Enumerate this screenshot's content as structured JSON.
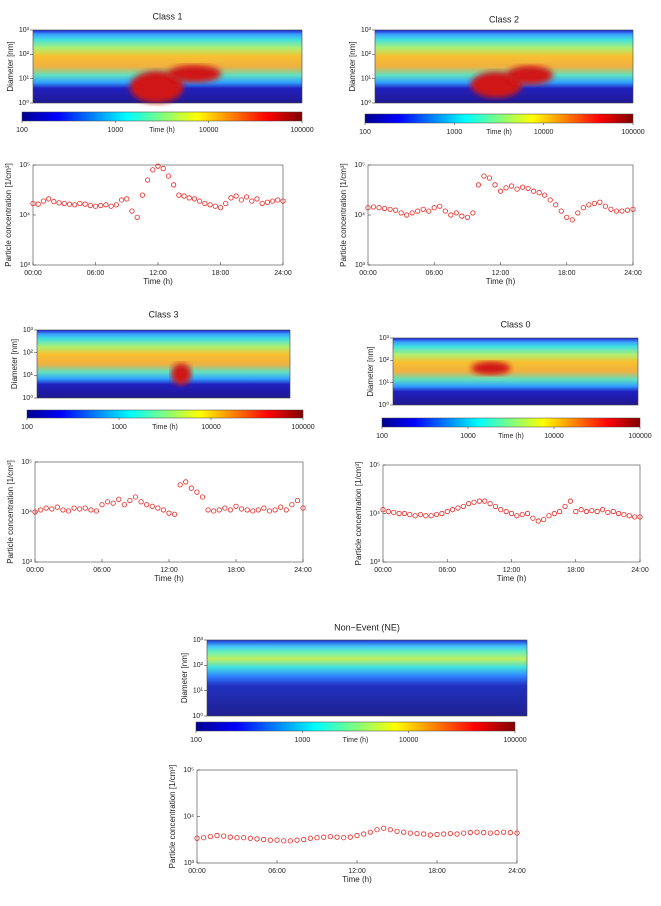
{
  "chart_data": [
    {
      "type": "heatmap",
      "title": "Class 1",
      "ylabel": "Diameter [nm]",
      "ylim": [
        1,
        1000
      ],
      "log_y": true,
      "yticks": [
        {
          "value": 1,
          "label": "10⁰"
        },
        {
          "value": 10,
          "label": "10¹"
        },
        {
          "value": 100,
          "label": "10²"
        },
        {
          "value": 1000,
          "label": "10³"
        }
      ],
      "colorbar": {
        "label": "Time (h)",
        "xlim": [
          100,
          100000
        ],
        "xticks": [
          100,
          1000,
          10000,
          100000
        ],
        "log": true
      }
    },
    {
      "type": "scatter",
      "ylabel": "Particle concentration [1/cm³]",
      "xlabel": "Time (h)",
      "color": "#e8231f",
      "log_y": true,
      "xlim": [
        0,
        24
      ],
      "xticks": [
        {
          "value": 0,
          "label": "00:00"
        },
        {
          "value": 6,
          "label": "06:00"
        },
        {
          "value": 12,
          "label": "12:00"
        },
        {
          "value": 18,
          "label": "18:00"
        },
        {
          "value": 24,
          "label": "24:00"
        }
      ],
      "ylim": [
        1000,
        100000
      ],
      "yticks": [
        {
          "value": 1000,
          "label": "10³"
        },
        {
          "value": 10000,
          "label": "10⁴"
        },
        {
          "value": 100000,
          "label": "10⁵"
        }
      ],
      "x": [
        0,
        0.5,
        1,
        1.5,
        2,
        2.5,
        3,
        3.5,
        4,
        4.5,
        5,
        5.5,
        6,
        6.5,
        7,
        7.5,
        8,
        8.5,
        9,
        9.5,
        10,
        10.5,
        11,
        11.5,
        12,
        12.5,
        13,
        13.5,
        14,
        14.5,
        15,
        15.5,
        16,
        16.5,
        17,
        17.5,
        18,
        18.5,
        19,
        19.5,
        20,
        20.5,
        21,
        21.5,
        22,
        22.5,
        23,
        23.5,
        24
      ],
      "values": [
        17000,
        16500,
        19000,
        21000,
        18500,
        17500,
        17000,
        16500,
        16000,
        17000,
        16500,
        15500,
        15000,
        15500,
        16000,
        15000,
        16000,
        20000,
        21000,
        12000,
        9000,
        25000,
        50000,
        80000,
        95000,
        85000,
        60000,
        40000,
        25000,
        24000,
        22000,
        21000,
        19000,
        17000,
        16000,
        15000,
        14000,
        17000,
        22000,
        24000,
        20000,
        23000,
        19000,
        21000,
        17000,
        18000,
        19000,
        20000,
        19000
      ]
    },
    {
      "type": "heatmap",
      "title": "Class 2",
      "ylabel": "Diameter [nm]",
      "ylim": [
        1,
        1000
      ],
      "log_y": true,
      "yticks": [
        {
          "value": 1,
          "label": "10⁰"
        },
        {
          "value": 10,
          "label": "10¹"
        },
        {
          "value": 100,
          "label": "10²"
        },
        {
          "value": 1000,
          "label": "10³"
        }
      ],
      "colorbar": {
        "label": "Time (h)",
        "xlim": [
          100,
          100000
        ],
        "xticks": [
          100,
          1000,
          10000,
          100000
        ],
        "log": true
      }
    },
    {
      "type": "scatter",
      "ylabel": "Particle concentration [1/cm³]",
      "xlabel": "Time (h)",
      "color": "#e8231f",
      "log_y": true,
      "xlim": [
        0,
        24
      ],
      "xticks": [
        {
          "value": 0,
          "label": "00:00"
        },
        {
          "value": 6,
          "label": "06:00"
        },
        {
          "value": 12,
          "label": "12:00"
        },
        {
          "value": 18,
          "label": "18:00"
        },
        {
          "value": 24,
          "label": "24:00"
        }
      ],
      "ylim": [
        1000,
        100000
      ],
      "yticks": [
        {
          "value": 1000,
          "label": "10³"
        },
        {
          "value": 10000,
          "label": "10⁴"
        },
        {
          "value": 100000,
          "label": "10⁵"
        }
      ],
      "x": [
        0,
        0.5,
        1,
        1.5,
        2,
        2.5,
        3,
        3.5,
        4,
        4.5,
        5,
        5.5,
        6,
        6.5,
        7,
        7.5,
        8,
        8.5,
        9,
        9.5,
        10,
        10.5,
        11,
        11.5,
        12,
        12.5,
        13,
        13.5,
        14,
        14.5,
        15,
        15.5,
        16,
        16.5,
        17,
        17.5,
        18,
        18.5,
        19,
        19.5,
        20,
        20.5,
        21,
        21.5,
        22,
        22.5,
        23,
        23.5,
        24
      ],
      "values": [
        14000,
        14500,
        14000,
        13500,
        13000,
        12500,
        11000,
        10000,
        11000,
        12000,
        13000,
        12000,
        14000,
        15000,
        12000,
        10000,
        11000,
        9500,
        9000,
        11000,
        40000,
        60000,
        55000,
        40000,
        30000,
        35000,
        38000,
        33000,
        36000,
        34000,
        30000,
        28000,
        25000,
        20000,
        16000,
        12000,
        9000,
        8000,
        11000,
        14000,
        16000,
        17000,
        18000,
        15000,
        13000,
        12000,
        12000,
        12500,
        13000
      ]
    },
    {
      "type": "heatmap",
      "title": "Class 3",
      "ylabel": "Diameter [nm]",
      "ylim": [
        1,
        1000
      ],
      "log_y": true,
      "yticks": [
        {
          "value": 1,
          "label": "10⁰"
        },
        {
          "value": 10,
          "label": "10¹"
        },
        {
          "value": 100,
          "label": "10²"
        },
        {
          "value": 1000,
          "label": "10³"
        }
      ],
      "colorbar": {
        "label": "Time (h)",
        "xlim": [
          100,
          100000
        ],
        "xticks": [
          100,
          1000,
          10000,
          100000
        ],
        "log": true
      }
    },
    {
      "type": "scatter",
      "ylabel": "Particle concentration [1/cm³]",
      "xlabel": "Time (h)",
      "color": "#e8231f",
      "log_y": true,
      "xlim": [
        0,
        24
      ],
      "xticks": [
        {
          "value": 0,
          "label": "00:00"
        },
        {
          "value": 6,
          "label": "06:00"
        },
        {
          "value": 12,
          "label": "12:00"
        },
        {
          "value": 18,
          "label": "18:00"
        },
        {
          "value": 24,
          "label": "24:00"
        }
      ],
      "ylim": [
        1000,
        100000
      ],
      "yticks": [
        {
          "value": 1000,
          "label": "10³"
        },
        {
          "value": 10000,
          "label": "10⁴"
        },
        {
          "value": 100000,
          "label": "10⁵"
        }
      ],
      "x": [
        0,
        0.5,
        1,
        1.5,
        2,
        2.5,
        3,
        3.5,
        4,
        4.5,
        5,
        5.5,
        6,
        6.5,
        7,
        7.5,
        8,
        8.5,
        9,
        9.5,
        10,
        10.5,
        11,
        11.5,
        12,
        12.5,
        13,
        13.5,
        14,
        14.5,
        15,
        15.5,
        16,
        16.5,
        17,
        17.5,
        18,
        18.5,
        19,
        19.5,
        20,
        20.5,
        21,
        21.5,
        22,
        22.5,
        23,
        23.5,
        24
      ],
      "values": [
        10000,
        11000,
        12000,
        11500,
        12500,
        11000,
        10500,
        12000,
        11500,
        12000,
        11000,
        10500,
        14000,
        16000,
        15000,
        18000,
        14000,
        17000,
        20000,
        16000,
        14000,
        13000,
        12000,
        11000,
        9500,
        9000,
        35000,
        40000,
        30000,
        25000,
        20000,
        11000,
        10500,
        11000,
        12000,
        11000,
        13000,
        11500,
        11000,
        10500,
        11000,
        12000,
        10500,
        11000,
        12500,
        11000,
        14000,
        17000,
        12000
      ]
    },
    {
      "type": "heatmap",
      "title": "Class 0",
      "ylabel": "Diameter [nm]",
      "ylim": [
        1,
        1000
      ],
      "log_y": true,
      "yticks": [
        {
          "value": 1,
          "label": "10⁰"
        },
        {
          "value": 10,
          "label": "10¹"
        },
        {
          "value": 100,
          "label": "10²"
        },
        {
          "value": 1000,
          "label": "10³"
        }
      ],
      "colorbar": {
        "label": "Time (h)",
        "xlim": [
          100,
          100000
        ],
        "xticks": [
          100,
          1000,
          10000,
          100000
        ],
        "log": true
      }
    },
    {
      "type": "scatter",
      "ylabel": "Particle concentration [1/cm³]",
      "xlabel": "Time (h)",
      "color": "#e8231f",
      "log_y": true,
      "xlim": [
        0,
        24
      ],
      "xticks": [
        {
          "value": 0,
          "label": "00:00"
        },
        {
          "value": 6,
          "label": "06:00"
        },
        {
          "value": 12,
          "label": "12:00"
        },
        {
          "value": 18,
          "label": "18:00"
        },
        {
          "value": 24,
          "label": "24:00"
        }
      ],
      "ylim": [
        1000,
        100000
      ],
      "yticks": [
        {
          "value": 1000,
          "label": "10³"
        },
        {
          "value": 10000,
          "label": "10⁴"
        },
        {
          "value": 100000,
          "label": "10⁵"
        }
      ],
      "x": [
        0,
        0.5,
        1,
        1.5,
        2,
        2.5,
        3,
        3.5,
        4,
        4.5,
        5,
        5.5,
        6,
        6.5,
        7,
        7.5,
        8,
        8.5,
        9,
        9.5,
        10,
        10.5,
        11,
        11.5,
        12,
        12.5,
        13,
        13.5,
        14,
        14.5,
        15,
        15.5,
        16,
        16.5,
        17,
        17.5,
        18,
        18.5,
        19,
        19.5,
        20,
        20.5,
        21,
        21.5,
        22,
        22.5,
        23,
        23.5,
        24
      ],
      "values": [
        12000,
        11000,
        10500,
        10000,
        10000,
        9500,
        9000,
        9500,
        9000,
        9000,
        9500,
        10000,
        11000,
        12000,
        13000,
        14000,
        16000,
        17000,
        18000,
        18000,
        16000,
        14000,
        12000,
        11000,
        10000,
        9000,
        9500,
        10000,
        8000,
        7000,
        7500,
        9000,
        10000,
        11000,
        14000,
        18000,
        11000,
        12000,
        11000,
        11500,
        11000,
        12000,
        10500,
        11000,
        10000,
        9500,
        9000,
        8500,
        8500
      ]
    },
    {
      "type": "heatmap",
      "title": "Non−Event  (NE)",
      "ylabel": "Diameter [nm]",
      "ylim": [
        1,
        1000
      ],
      "log_y": true,
      "yticks": [
        {
          "value": 1,
          "label": "10⁰"
        },
        {
          "value": 10,
          "label": "10¹"
        },
        {
          "value": 100,
          "label": "10²"
        },
        {
          "value": 1000,
          "label": "10³"
        }
      ],
      "colorbar": {
        "label": "Time (h)",
        "xlim": [
          100,
          100000
        ],
        "xticks": [
          100,
          1000,
          10000,
          100000
        ],
        "log": true
      }
    },
    {
      "type": "scatter",
      "ylabel": "Particle concentration [1/cm³]",
      "xlabel": "Time (h)",
      "color": "#e8231f",
      "log_y": true,
      "xlim": [
        0,
        24
      ],
      "xticks": [
        {
          "value": 0,
          "label": "00:00"
        },
        {
          "value": 6,
          "label": "06:00"
        },
        {
          "value": 12,
          "label": "12:00"
        },
        {
          "value": 18,
          "label": "18:00"
        },
        {
          "value": 24,
          "label": "24:00"
        }
      ],
      "ylim": [
        1000,
        100000
      ],
      "yticks": [
        {
          "value": 1000,
          "label": "10³"
        },
        {
          "value": 10000,
          "label": "10⁴"
        },
        {
          "value": 100000,
          "label": "10⁵"
        }
      ],
      "x": [
        0,
        0.5,
        1,
        1.5,
        2,
        2.5,
        3,
        3.5,
        4,
        4.5,
        5,
        5.5,
        6,
        6.5,
        7,
        7.5,
        8,
        8.5,
        9,
        9.5,
        10,
        10.5,
        11,
        11.5,
        12,
        12.5,
        13,
        13.5,
        14,
        14.5,
        15,
        15.5,
        16,
        16.5,
        17,
        17.5,
        18,
        18.5,
        19,
        19.5,
        20,
        20.5,
        21,
        21.5,
        22,
        22.5,
        23,
        23.5,
        24
      ],
      "values": [
        3400,
        3500,
        3700,
        3900,
        3800,
        3600,
        3500,
        3500,
        3400,
        3300,
        3200,
        3100,
        3100,
        3000,
        3000,
        3100,
        3200,
        3400,
        3500,
        3600,
        3700,
        3600,
        3500,
        3600,
        3900,
        4200,
        4600,
        5200,
        5600,
        5200,
        4800,
        4600,
        4400,
        4300,
        4200,
        4000,
        4100,
        4200,
        4300,
        4200,
        4400,
        4500,
        4600,
        4500,
        4400,
        4500,
        4600,
        4500,
        4400
      ]
    }
  ]
}
